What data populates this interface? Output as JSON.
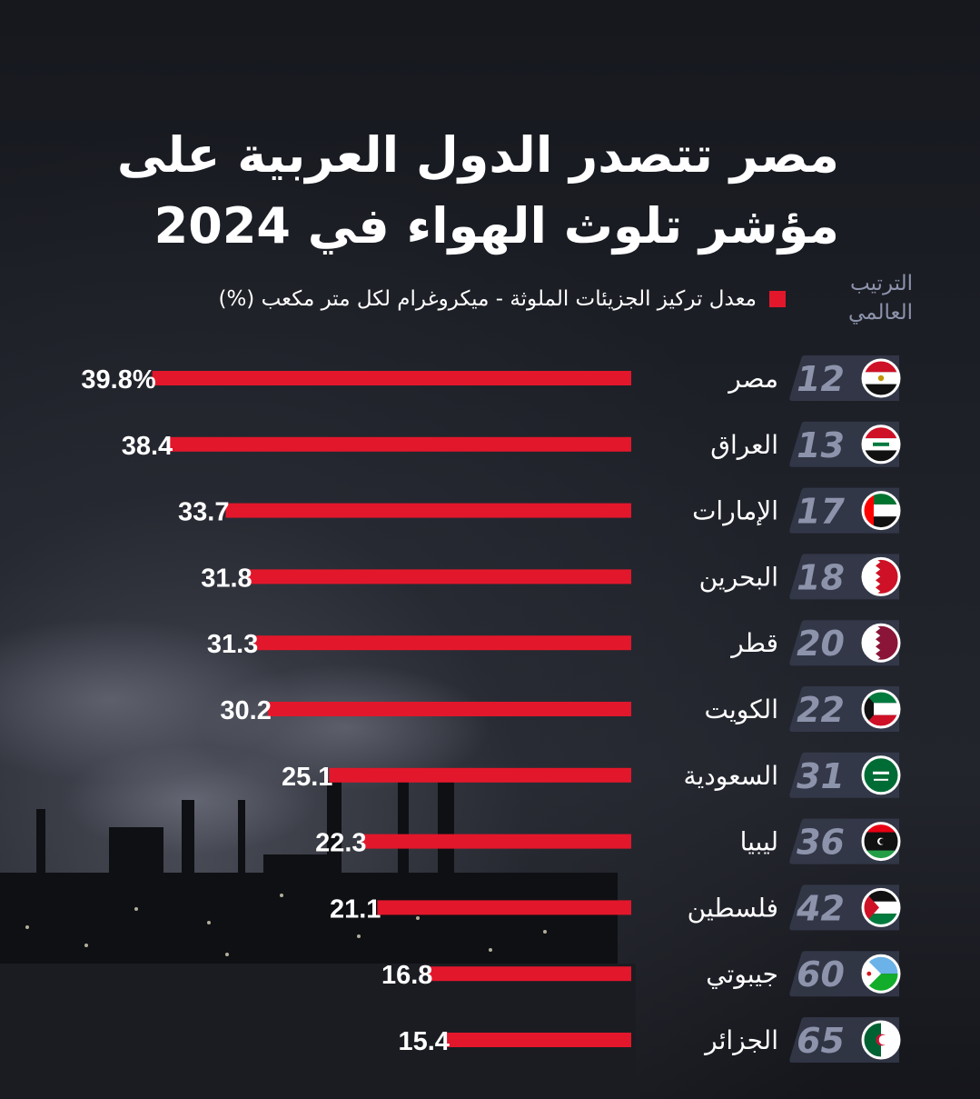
{
  "title_lines": [
    "مصر تتصدر الدول العربية على",
    "مؤشر تلوث الهواء في 2024"
  ],
  "rank_header_lines": [
    "الترتيب",
    "العالمي"
  ],
  "legend_label": "معدل تركيز الجزيئات الملوثة - ميكروغرام لكل متر مكعب (%)",
  "colors": {
    "bar": "#e3172b",
    "rank_text": "#8c93ab",
    "badge": "#3a3f52",
    "background": "#1d1f26"
  },
  "chart_data": {
    "type": "bar",
    "orientation": "horizontal",
    "categories": [
      "مصر",
      "العراق",
      "الإمارات",
      "البحرين",
      "قطر",
      "الكويت",
      "السعودية",
      "ليبيا",
      "فلسطين",
      "جيبوتي",
      "الجزائر"
    ],
    "values": [
      39.8,
      38.4,
      33.7,
      31.8,
      31.3,
      30.2,
      25.1,
      22.3,
      21.1,
      16.8,
      15.4
    ],
    "value_labels": [
      "39.8%",
      "38.4",
      "33.7",
      "31.8",
      "31.3",
      "30.2",
      "25.1",
      "22.3",
      "21.1",
      "16.8",
      "15.4"
    ],
    "ranks": [
      "12",
      "13",
      "17",
      "18",
      "20",
      "22",
      "31",
      "36",
      "42",
      "60",
      "65"
    ],
    "flags": [
      "egypt-flag",
      "iraq-flag",
      "uae-flag",
      "bahrain-flag",
      "qatar-flag",
      "kuwait-flag",
      "saudi-flag",
      "libya-flag",
      "palestine-flag",
      "djibouti-flag",
      "algeria-flag"
    ],
    "xlim": [
      0,
      40
    ],
    "grid": false,
    "legend_position": "top"
  }
}
